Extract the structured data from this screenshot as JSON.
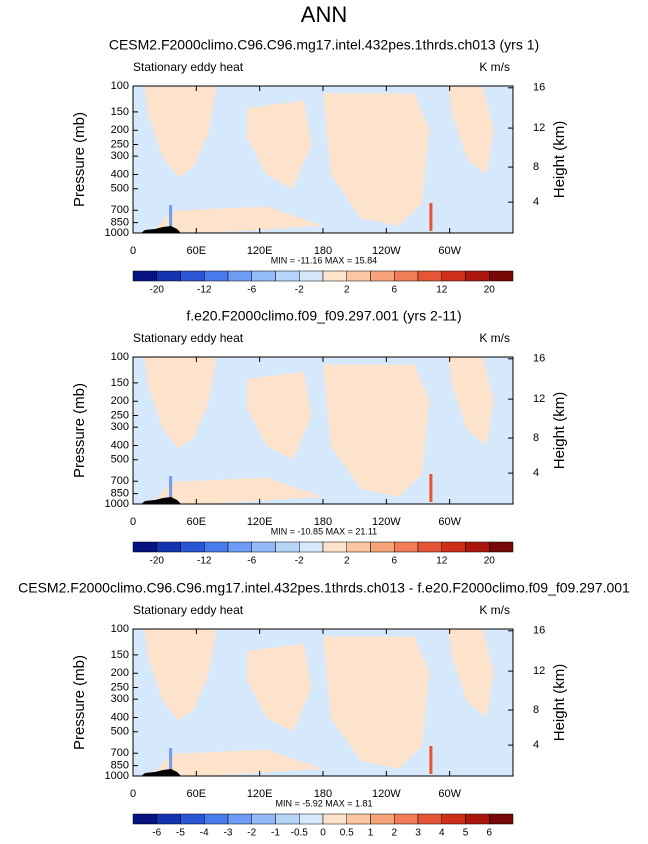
{
  "title": "ANN",
  "chart_data": [
    {
      "type": "contour",
      "title": "CESM2.F2000climo.C96.C96.mg17.intel.432pes.1thrds.ch013 (yrs 1)",
      "subtitle": "Stationary eddy heat",
      "units": "K m/s",
      "ylabel": "Pressure (mb)",
      "y2label": "Height (km)",
      "xlim": [
        0,
        360
      ],
      "xticks": [
        0,
        {
          "value": 60,
          "label": "60E"
        },
        {
          "value": 120,
          "label": "120E"
        },
        180,
        {
          "value": 240,
          "label": "120W"
        },
        {
          "value": 300,
          "label": "60W"
        }
      ],
      "ylim": [
        1000,
        100
      ],
      "yscale": "log",
      "yticks": [
        100,
        150,
        200,
        250,
        300,
        400,
        500,
        700,
        850,
        1000
      ],
      "y2lim": [
        0.1,
        16.2
      ],
      "y2ticks": [
        4,
        8,
        12,
        16
      ],
      "stats": "MIN = -11.16  MAX =  15.84",
      "colorbar": {
        "levels": [
          -20,
          null,
          -12,
          null,
          -6,
          null,
          -2,
          null,
          2,
          null,
          6,
          null,
          12,
          null,
          20
        ],
        "colors": [
          "#06127e",
          "#1433b0",
          "#2a56d6",
          "#4a7bec",
          "#6e9cf4",
          "#93bbf7",
          "#b7d4fa",
          "#d6e8fb",
          "#fde3cc",
          "#fbc6a2",
          "#f8a47b",
          "#f27e57",
          "#e65535",
          "#d02d1b",
          "#ab150c",
          "#760806"
        ]
      }
    },
    {
      "type": "contour",
      "title": "f.e20.F2000climo.f09_f09.297.001 (yrs 2-11)",
      "subtitle": "Stationary eddy heat",
      "units": "K m/s",
      "ylabel": "Pressure (mb)",
      "y2label": "Height (km)",
      "xlim": [
        0,
        360
      ],
      "xticks": [
        0,
        {
          "value": 60,
          "label": "60E"
        },
        {
          "value": 120,
          "label": "120E"
        },
        180,
        {
          "value": 240,
          "label": "120W"
        },
        {
          "value": 300,
          "label": "60W"
        }
      ],
      "ylim": [
        1000,
        100
      ],
      "yscale": "log",
      "yticks": [
        100,
        150,
        200,
        250,
        300,
        400,
        500,
        700,
        850,
        1000
      ],
      "y2lim": [
        0.1,
        16.2
      ],
      "y2ticks": [
        4,
        8,
        12,
        16
      ],
      "stats": "MIN = -10.85  MAX =  21.11",
      "colorbar": {
        "levels": [
          -20,
          null,
          -12,
          null,
          -6,
          null,
          -2,
          null,
          2,
          null,
          6,
          null,
          12,
          null,
          20
        ],
        "colors": [
          "#06127e",
          "#1433b0",
          "#2a56d6",
          "#4a7bec",
          "#6e9cf4",
          "#93bbf7",
          "#b7d4fa",
          "#d6e8fb",
          "#fde3cc",
          "#fbc6a2",
          "#f8a47b",
          "#f27e57",
          "#e65535",
          "#d02d1b",
          "#ab150c",
          "#760806"
        ]
      }
    },
    {
      "type": "contour",
      "title": "CESM2.F2000climo.C96.C96.mg17.intel.432pes.1thrds.ch013 - f.e20.F2000climo.f09_f09.297.001",
      "subtitle": "Stationary eddy heat",
      "units": "K m/s",
      "ylabel": "Pressure (mb)",
      "y2label": "Height (km)",
      "xlim": [
        0,
        360
      ],
      "xticks": [
        0,
        {
          "value": 60,
          "label": "60E"
        },
        {
          "value": 120,
          "label": "120E"
        },
        180,
        {
          "value": 240,
          "label": "120W"
        },
        {
          "value": 300,
          "label": "60W"
        }
      ],
      "ylim": [
        1000,
        100
      ],
      "yscale": "log",
      "yticks": [
        100,
        150,
        200,
        250,
        300,
        400,
        500,
        700,
        850,
        1000
      ],
      "y2lim": [
        0.1,
        16.2
      ],
      "y2ticks": [
        4,
        8,
        12,
        16
      ],
      "stats": "MIN = -5.92  MAX =  1.81",
      "colorbar": {
        "levels": [
          -6,
          -5,
          -4,
          -3,
          -2,
          -1,
          -0.5,
          0,
          0.5,
          1,
          2,
          3,
          4,
          5,
          6
        ],
        "colors": [
          "#06127e",
          "#1433b0",
          "#2a56d6",
          "#4a7bec",
          "#6e9cf4",
          "#93bbf7",
          "#b7d4fa",
          "#d6e8fb",
          "#fde3cc",
          "#fbc6a2",
          "#f8a47b",
          "#f27e57",
          "#e65535",
          "#d02d1b",
          "#ab150c",
          "#760806"
        ]
      }
    }
  ]
}
